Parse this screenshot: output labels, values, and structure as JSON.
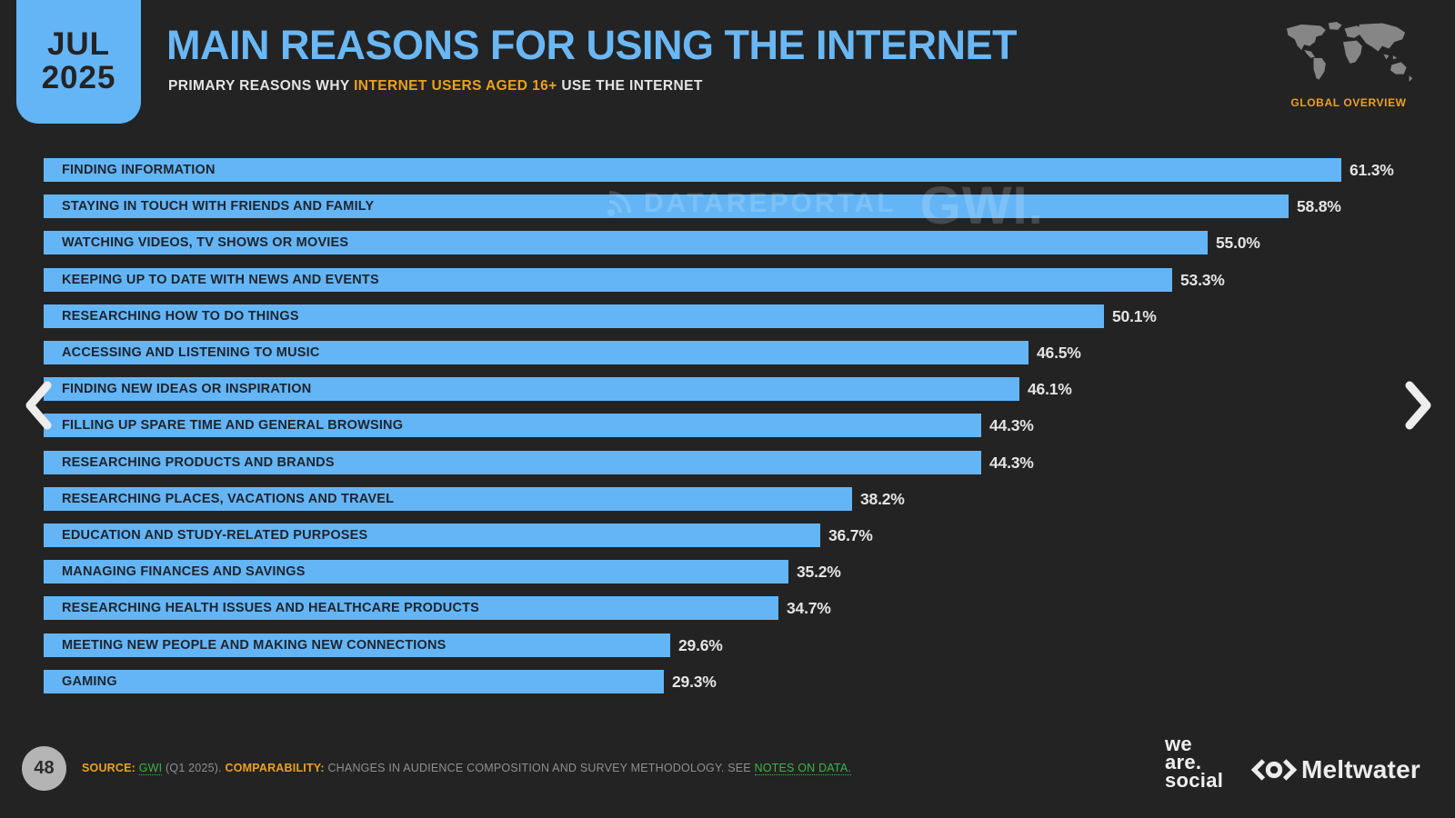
{
  "header": {
    "date_badge": {
      "month": "JUL",
      "year": "2025"
    },
    "title": "MAIN REASONS FOR USING THE INTERNET",
    "subtitle_prefix": "PRIMARY REASONS WHY ",
    "subtitle_highlight": "INTERNET USERS AGED 16+",
    "subtitle_suffix": " USE THE INTERNET",
    "region_label": "GLOBAL OVERVIEW"
  },
  "watermark": {
    "dataportal": "DATAREPORTAL",
    "gwi": "GWI."
  },
  "chart_data": {
    "type": "bar",
    "orientation": "horizontal",
    "unit": "%",
    "title": "MAIN REASONS FOR USING THE INTERNET",
    "xlim": [
      0,
      65
    ],
    "bar_color": "#64b5f6",
    "categories": [
      "FINDING INFORMATION",
      "STAYING IN TOUCH WITH FRIENDS AND FAMILY",
      "WATCHING VIDEOS, TV SHOWS OR MOVIES",
      "KEEPING UP TO DATE WITH NEWS AND EVENTS",
      "RESEARCHING HOW TO DO THINGS",
      "ACCESSING AND LISTENING TO MUSIC",
      "FINDING NEW IDEAS OR INSPIRATION",
      "FILLING UP SPARE TIME AND GENERAL BROWSING",
      "RESEARCHING PRODUCTS AND BRANDS",
      "RESEARCHING PLACES, VACATIONS AND TRAVEL",
      "EDUCATION AND STUDY-RELATED PURPOSES",
      "MANAGING FINANCES AND SAVINGS",
      "RESEARCHING HEALTH ISSUES AND HEALTHCARE PRODUCTS",
      "MEETING NEW PEOPLE AND MAKING NEW CONNECTIONS",
      "GAMING"
    ],
    "values": [
      61.3,
      58.8,
      55.0,
      53.3,
      50.1,
      46.5,
      46.1,
      44.3,
      44.3,
      38.2,
      36.7,
      35.2,
      34.7,
      29.6,
      29.3
    ]
  },
  "footer": {
    "page_number": "48",
    "source_label": "SOURCE:",
    "source_link": "GWI",
    "source_rest": "(Q1 2025).",
    "comparability_label": "COMPARABILITY:",
    "comparability_text": "CHANGES IN AUDIENCE COMPOSITION AND SURVEY METHODOLOGY. SEE",
    "notes_link": "NOTES ON DATA.",
    "logos": {
      "we_are_social_lines": [
        "we",
        "are.",
        "social"
      ],
      "meltwater": "Meltwater"
    }
  },
  "icons": {
    "prev": "chevron-left",
    "next": "chevron-right",
    "map": "world-map",
    "watermark_icon": "dataportal-signal",
    "meltwater_icon": "meltwater-eye"
  },
  "colors": {
    "background": "#232323",
    "bar": "#64b5f6",
    "accent_blue": "#6ab7f5",
    "accent_orange": "#eda01e",
    "link_green": "#3cb54a",
    "bar_label_text": "#1e242e",
    "value_text": "#e4e4e4",
    "footer_text": "#8f8f8f"
  }
}
